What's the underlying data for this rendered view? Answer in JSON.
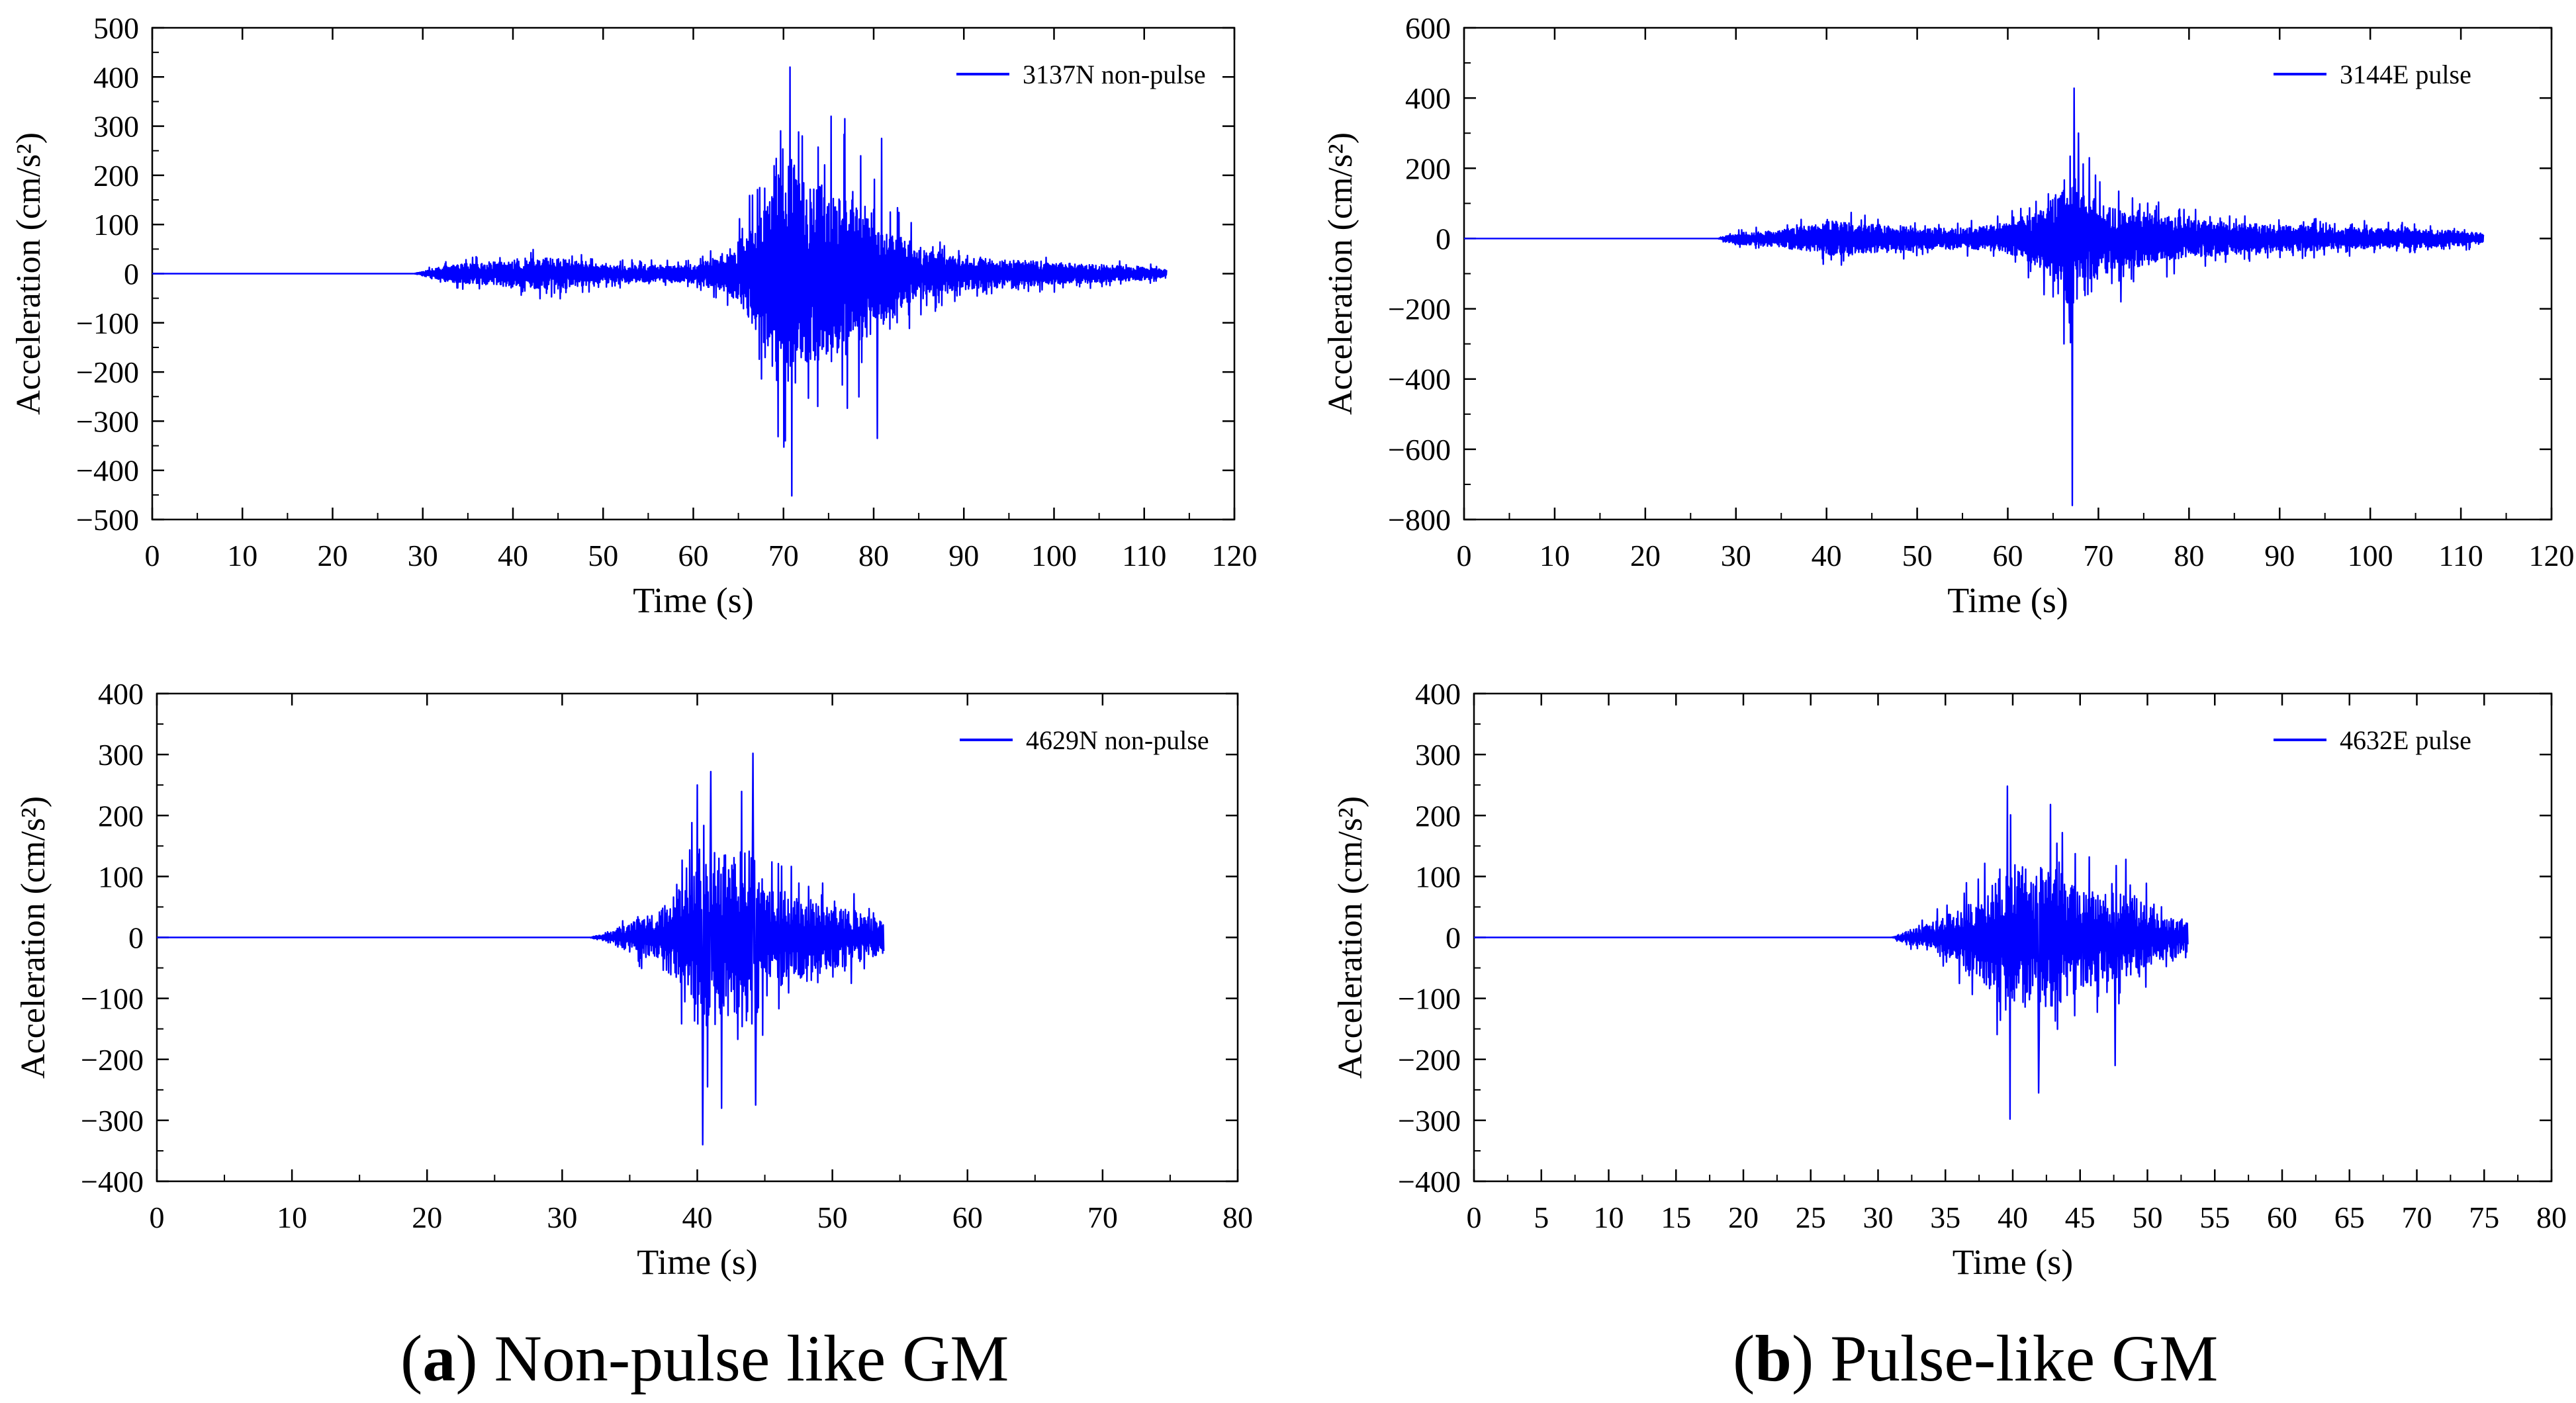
{
  "figure": {
    "captions": [
      {
        "letter": "a",
        "text": ") Non-pulse like GM"
      },
      {
        "letter": "b",
        "text": ") Pulse-like GM"
      }
    ]
  },
  "colors": {
    "series": "#0000ff",
    "axis": "#000000",
    "background": "#ffffff"
  },
  "chart_data": [
    {
      "type": "line",
      "panel": "top-left",
      "title": "",
      "xlabel": "Time (s)",
      "ylabel": "Acceleration (cm/s²)",
      "xlim": [
        0,
        120
      ],
      "ylim": [
        -500,
        500
      ],
      "xticks": [
        0,
        10,
        20,
        30,
        40,
        50,
        60,
        70,
        80,
        90,
        100,
        110,
        120
      ],
      "yticks": [
        -500,
        -400,
        -300,
        -200,
        -100,
        0,
        100,
        200,
        300,
        400,
        500
      ],
      "grid": false,
      "legend_position": "top-right",
      "series": [
        {
          "name": "3137N non-pulse",
          "duration": 112.5,
          "envelope": [
            [
              0,
              0
            ],
            [
              29,
              0
            ],
            [
              31,
              15
            ],
            [
              33,
              30
            ],
            [
              40,
              45
            ],
            [
              45,
              55
            ],
            [
              50,
              30
            ],
            [
              55,
              28
            ],
            [
              60,
              30
            ],
            [
              64,
              70
            ],
            [
              66,
              150
            ],
            [
              68,
              250
            ],
            [
              70,
              400
            ],
            [
              71,
              390
            ],
            [
              73,
              300
            ],
            [
              75,
              310
            ],
            [
              78,
              270
            ],
            [
              80,
              200
            ],
            [
              82,
              160
            ],
            [
              85,
              90
            ],
            [
              90,
              55
            ],
            [
              95,
              45
            ],
            [
              100,
              38
            ],
            [
              105,
              30
            ],
            [
              110,
              22
            ],
            [
              112.5,
              15
            ]
          ],
          "peaks": [
            [
              70.7,
              420
            ],
            [
              70.9,
              -452
            ],
            [
              70.2,
              -340
            ],
            [
              72.1,
              280
            ],
            [
              75.3,
              320
            ],
            [
              76.8,
              315
            ],
            [
              80.4,
              -335
            ],
            [
              80.9,
              275
            ],
            [
              68.6,
              -120
            ],
            [
              73.8,
              -270
            ]
          ]
        }
      ]
    },
    {
      "type": "line",
      "panel": "top-right",
      "title": "",
      "xlabel": "Time (s)",
      "ylabel": "Acceleration (cm/s²)",
      "xlim": [
        0,
        120
      ],
      "ylim": [
        -800,
        600
      ],
      "xticks": [
        0,
        10,
        20,
        30,
        40,
        50,
        60,
        70,
        80,
        90,
        100,
        110,
        120
      ],
      "yticks": [
        -800,
        -600,
        -400,
        -200,
        0,
        200,
        400,
        600
      ],
      "grid": false,
      "legend_position": "top-right",
      "series": [
        {
          "name": "3144E pulse",
          "duration": 112.5,
          "envelope": [
            [
              0,
              0
            ],
            [
              28,
              0
            ],
            [
              29.5,
              25
            ],
            [
              35,
              40
            ],
            [
              40,
              85
            ],
            [
              45,
              70
            ],
            [
              50,
              55
            ],
            [
              55,
              50
            ],
            [
              60,
              70
            ],
            [
              62,
              110
            ],
            [
              64,
              150
            ],
            [
              66,
              260
            ],
            [
              67,
              350
            ],
            [
              68,
              250
            ],
            [
              70,
              170
            ],
            [
              72,
              150
            ],
            [
              75,
              130
            ],
            [
              80,
              90
            ],
            [
              85,
              75
            ],
            [
              90,
              65
            ],
            [
              95,
              55
            ],
            [
              100,
              50
            ],
            [
              105,
              45
            ],
            [
              110,
              35
            ],
            [
              112.5,
              25
            ]
          ],
          "peaks": [
            [
              67.3,
              428
            ],
            [
              67.1,
              -760
            ],
            [
              66.8,
              -240
            ],
            [
              66.2,
              -300
            ],
            [
              67.8,
              300
            ],
            [
              64.0,
              -160
            ],
            [
              69.0,
              230
            ],
            [
              72.5,
              -180
            ]
          ]
        }
      ]
    },
    {
      "type": "line",
      "panel": "bottom-left",
      "title": "",
      "xlabel": "Time (s)",
      "ylabel": "Acceleration (cm/s²)",
      "xlim": [
        0,
        80
      ],
      "ylim": [
        -400,
        400
      ],
      "xticks": [
        0,
        10,
        20,
        30,
        40,
        50,
        60,
        70,
        80
      ],
      "yticks": [
        -400,
        -300,
        -200,
        -100,
        0,
        100,
        200,
        300,
        400
      ],
      "grid": false,
      "legend_position": "top-right",
      "series": [
        {
          "name": "4629N non-pulse",
          "duration": 53.8,
          "envelope": [
            [
              0,
              0
            ],
            [
              32,
              0
            ],
            [
              33,
              10
            ],
            [
              35,
              40
            ],
            [
              37,
              70
            ],
            [
              38.5,
              130
            ],
            [
              39.5,
              220
            ],
            [
              40.5,
              260
            ],
            [
              42,
              230
            ],
            [
              44,
              260
            ],
            [
              45,
              150
            ],
            [
              47,
              120
            ],
            [
              50,
              90
            ],
            [
              52,
              70
            ],
            [
              53.8,
              45
            ]
          ],
          "peaks": [
            [
              44.1,
              302
            ],
            [
              40.4,
              -340
            ],
            [
              41.0,
              272
            ],
            [
              44.3,
              -275
            ],
            [
              40.0,
              250
            ],
            [
              41.8,
              -280
            ]
          ]
        }
      ]
    },
    {
      "type": "line",
      "panel": "bottom-right",
      "title": "",
      "xlabel": "Time (s)",
      "ylabel": "Acceleration (cm/s²)",
      "xlim": [
        0,
        80
      ],
      "ylim": [
        -400,
        400
      ],
      "xticks": [
        0,
        5,
        10,
        15,
        20,
        25,
        30,
        35,
        40,
        45,
        50,
        55,
        60,
        65,
        70,
        75,
        80
      ],
      "yticks": [
        -400,
        -300,
        -200,
        -100,
        0,
        100,
        200,
        300,
        400
      ],
      "grid": false,
      "legend_position": "top-right",
      "series": [
        {
          "name": "4632E pulse",
          "duration": 53.0,
          "envelope": [
            [
              0,
              0
            ],
            [
              31,
              0
            ],
            [
              32,
              15
            ],
            [
              34,
              40
            ],
            [
              36,
              80
            ],
            [
              38,
              130
            ],
            [
              39.5,
              210
            ],
            [
              41,
              190
            ],
            [
              43,
              200
            ],
            [
              45,
              140
            ],
            [
              47,
              130
            ],
            [
              49,
              110
            ],
            [
              51,
              70
            ],
            [
              53,
              40
            ]
          ],
          "peaks": [
            [
              39.6,
              248
            ],
            [
              39.8,
              -298
            ],
            [
              41.9,
              -255
            ],
            [
              42.8,
              218
            ],
            [
              47.6,
              -210
            ],
            [
              48.4,
              128
            ]
          ]
        }
      ]
    }
  ]
}
